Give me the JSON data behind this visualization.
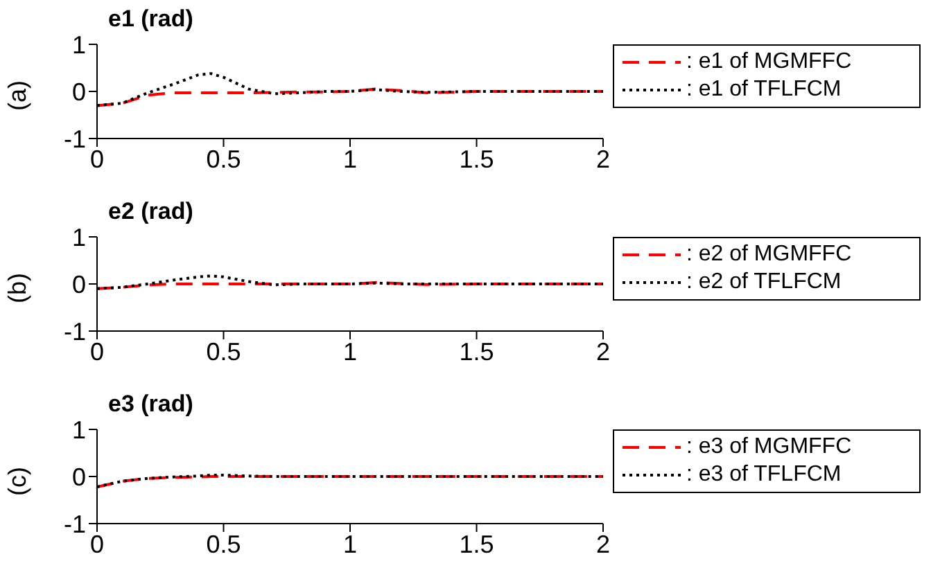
{
  "chart_data": [
    {
      "type": "line",
      "title": "e1 (rad)",
      "ylabel": "(a)",
      "x": [
        0,
        0.1,
        0.2,
        0.3,
        0.4,
        0.45,
        0.5,
        0.6,
        0.7,
        0.8,
        0.9,
        1.0,
        1.1,
        1.2,
        1.3,
        1.5,
        1.75,
        2
      ],
      "xlim": [
        0,
        2
      ],
      "xticks": [
        0,
        0.5,
        1,
        1.5,
        2
      ],
      "ylim": [
        -1,
        1
      ],
      "yticks": [
        -1,
        0,
        1
      ],
      "legend": "right",
      "series": [
        {
          "name": ": e1 of MGMFFC",
          "color": "#ff0000",
          "line_style": "dashed",
          "values": [
            -0.3,
            -0.25,
            -0.08,
            -0.03,
            -0.03,
            -0.03,
            -0.03,
            -0.03,
            -0.02,
            -0.01,
            -0.01,
            0,
            0.05,
            0.02,
            -0.03,
            0,
            0,
            0
          ]
        },
        {
          "name": ": e1 of TFLFCM",
          "color": "#000000",
          "line_style": "dotted",
          "values": [
            -0.3,
            -0.25,
            -0.03,
            0.15,
            0.35,
            0.38,
            0.3,
            0.05,
            -0.05,
            -0.03,
            0,
            0,
            0.04,
            0,
            -0.02,
            0,
            0,
            0
          ]
        }
      ]
    },
    {
      "type": "line",
      "title": "e2 (rad)",
      "ylabel": "(b)",
      "x": [
        0,
        0.1,
        0.2,
        0.3,
        0.4,
        0.45,
        0.5,
        0.6,
        0.7,
        0.8,
        0.9,
        1.0,
        1.1,
        1.2,
        1.3,
        1.5,
        1.75,
        2
      ],
      "xlim": [
        0,
        2
      ],
      "xticks": [
        0,
        0.5,
        1,
        1.5,
        2
      ],
      "ylim": [
        -1,
        1
      ],
      "yticks": [
        -1,
        0,
        1
      ],
      "legend": "right",
      "series": [
        {
          "name": ": e2 of MGMFFC",
          "color": "#ff0000",
          "line_style": "dashed",
          "values": [
            -0.1,
            -0.07,
            -0.02,
            0,
            0,
            0,
            0,
            0,
            0,
            0,
            0,
            0,
            0.03,
            0.01,
            -0.01,
            0,
            0,
            0
          ]
        },
        {
          "name": ": e2 of TFLFCM",
          "color": "#000000",
          "line_style": "dotted",
          "values": [
            -0.1,
            -0.07,
            0,
            0.08,
            0.15,
            0.17,
            0.15,
            0.05,
            -0.02,
            0,
            0,
            0,
            0.02,
            0,
            0,
            0,
            0,
            0
          ]
        }
      ]
    },
    {
      "type": "line",
      "title": "e3 (rad)",
      "ylabel": "(c)",
      "x": [
        0,
        0.1,
        0.2,
        0.3,
        0.4,
        0.45,
        0.5,
        0.6,
        0.7,
        0.8,
        0.9,
        1.0,
        1.1,
        1.2,
        1.3,
        1.5,
        1.75,
        2
      ],
      "xlim": [
        0,
        2
      ],
      "xticks": [
        0,
        0.5,
        1,
        1.5,
        2
      ],
      "ylim": [
        -1,
        1
      ],
      "yticks": [
        -1,
        0,
        1
      ],
      "legend": "right",
      "series": [
        {
          "name": ": e3 of MGMFFC",
          "color": "#ff0000",
          "line_style": "dashed",
          "values": [
            -0.22,
            -0.1,
            -0.04,
            -0.02,
            -0.01,
            0,
            0,
            0,
            0,
            0,
            0,
            0,
            0,
            0,
            0,
            0,
            0,
            0
          ]
        },
        {
          "name": ": e3 of TFLFCM",
          "color": "#000000",
          "line_style": "dotted",
          "values": [
            -0.22,
            -0.1,
            -0.04,
            -0.01,
            0.01,
            0.03,
            0.03,
            0.01,
            0,
            0,
            0,
            0,
            0,
            0,
            0,
            0,
            0,
            0
          ]
        }
      ]
    }
  ]
}
